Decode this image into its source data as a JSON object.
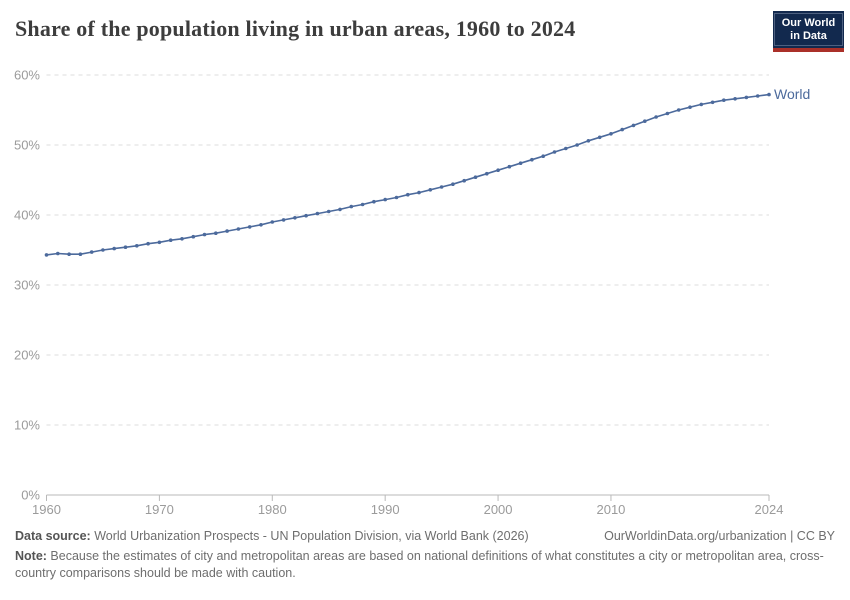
{
  "header": {
    "title": "Share of the population living in urban areas, 1960 to 2024"
  },
  "logo": {
    "line1": "Our World",
    "line2": "in Data"
  },
  "chart_data": {
    "type": "line",
    "title": "Share of the population living in urban areas, 1960 to 2024",
    "xlabel": "",
    "ylabel": "",
    "xlim": [
      1960,
      2024
    ],
    "ylim": [
      0,
      60
    ],
    "x_ticks": [
      1960,
      1970,
      1980,
      1990,
      2000,
      2010,
      2024
    ],
    "y_ticks": [
      0,
      10,
      20,
      30,
      40,
      50,
      60
    ],
    "y_tick_suffix": "%",
    "grid": "dashed-horizontal",
    "legend_position": "end-of-line-label",
    "series": [
      {
        "name": "World",
        "color": "#4c6a9c",
        "x": [
          1960,
          1961,
          1962,
          1963,
          1964,
          1965,
          1966,
          1967,
          1968,
          1969,
          1970,
          1971,
          1972,
          1973,
          1974,
          1975,
          1976,
          1977,
          1978,
          1979,
          1980,
          1981,
          1982,
          1983,
          1984,
          1985,
          1986,
          1987,
          1988,
          1989,
          1990,
          1991,
          1992,
          1993,
          1994,
          1995,
          1996,
          1997,
          1998,
          1999,
          2000,
          2001,
          2002,
          2003,
          2004,
          2005,
          2006,
          2007,
          2008,
          2009,
          2010,
          2011,
          2012,
          2013,
          2014,
          2015,
          2016,
          2017,
          2018,
          2019,
          2020,
          2021,
          2022,
          2023,
          2024
        ],
        "values": [
          34.3,
          34.5,
          34.4,
          34.4,
          34.7,
          35.0,
          35.2,
          35.4,
          35.6,
          35.9,
          36.1,
          36.4,
          36.6,
          36.9,
          37.2,
          37.4,
          37.7,
          38.0,
          38.3,
          38.6,
          39.0,
          39.3,
          39.6,
          39.9,
          40.2,
          40.5,
          40.8,
          41.2,
          41.5,
          41.9,
          42.2,
          42.5,
          42.9,
          43.2,
          43.6,
          44.0,
          44.4,
          44.9,
          45.4,
          45.9,
          46.4,
          46.9,
          47.4,
          47.9,
          48.4,
          49.0,
          49.5,
          50.0,
          50.6,
          51.1,
          51.6,
          52.2,
          52.8,
          53.4,
          54.0,
          54.5,
          55.0,
          55.4,
          55.8,
          56.1,
          56.4,
          56.6,
          56.8,
          57.0,
          57.2
        ]
      }
    ]
  },
  "footer": {
    "source_label": "Data source:",
    "source_text": " World Urbanization Prospects - UN Population Division, via World Bank (2026)",
    "attribution": "OurWorldinData.org/urbanization | CC BY",
    "note_label": "Note:",
    "note_text": " Because the estimates of city and metropolitan areas are based on national definitions of what constitutes a city or metropolitan area, cross-country comparisons should be made with caution."
  },
  "colors": {
    "line": "#4c6a9c",
    "end_label": "#4c6a9c",
    "grid": "#dddddd",
    "axis": "#b9b9b9",
    "tick_label": "#9b9b9b",
    "title": "#3d3d3d",
    "footer_text": "#6e6e6e",
    "logo_bg": "#12294e",
    "logo_border": "#4d6080",
    "logo_stripe": "#aa3029"
  }
}
